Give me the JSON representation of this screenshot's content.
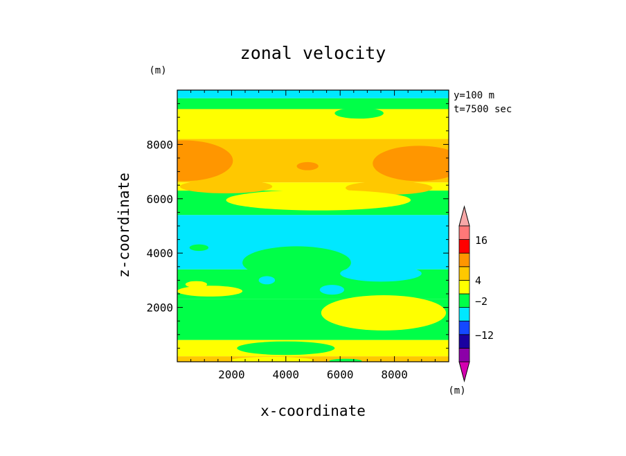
{
  "chart_data": {
    "type": "heatmap",
    "title": "zonal velocity",
    "xlabel": "x-coordinate",
    "ylabel": "z-coordinate",
    "x_unit": "(m)",
    "y_unit": "(m)",
    "colorbar_unit": "(m)",
    "annotations": [
      "y=100 m",
      "t=7500 sec"
    ],
    "xlim": [
      0,
      10000
    ],
    "ylim": [
      0,
      10000
    ],
    "x_ticks": [
      2000,
      4000,
      6000,
      8000
    ],
    "y_ticks": [
      2000,
      4000,
      6000,
      8000
    ],
    "colorbar": {
      "levels": [
        {
          "color": "#d400b0"
        },
        {
          "color": "#8c00a8"
        },
        {
          "color": "#1a00a0"
        },
        {
          "color": "#1448ff"
        },
        {
          "color": "#00e8ff"
        },
        {
          "color": "#00ff48"
        },
        {
          "color": "#ffff00"
        },
        {
          "color": "#ffc800"
        },
        {
          "color": "#ff9600"
        },
        {
          "color": "#ff0000"
        },
        {
          "color": "#ff7878"
        },
        {
          "color": "#f8a8a8"
        }
      ],
      "tick_labels": [
        "16",
        "4",
        "−2",
        "−12"
      ]
    },
    "bands": [
      {
        "z": [
          9700,
          10000
        ],
        "color": "#00e8ff"
      },
      {
        "z": [
          9300,
          9700
        ],
        "color": "#00ff48"
      },
      {
        "z": [
          8200,
          9300
        ],
        "color": "#ffff00"
      },
      {
        "z": [
          6600,
          8200
        ],
        "color": "#ffc800"
      },
      {
        "z": [
          6300,
          6600
        ],
        "color": "#ffff00"
      },
      {
        "z": [
          5400,
          6300
        ],
        "color": "#00ff48"
      },
      {
        "z": [
          3400,
          5400
        ],
        "color": "#00e8ff"
      },
      {
        "z": [
          2300,
          3400
        ],
        "color": "#00ff48"
      },
      {
        "z": [
          800,
          2300
        ],
        "color": "#00ff48"
      },
      {
        "z": [
          200,
          800
        ],
        "color": "#ffff00"
      },
      {
        "z": [
          0,
          200
        ],
        "color": "#ffc800"
      }
    ],
    "patches": [
      {
        "x": 250,
        "z": 7400,
        "rx": 1800,
        "rz": 750,
        "color": "#ff9600"
      },
      {
        "x": 8900,
        "z": 7300,
        "rx": 1700,
        "rz": 650,
        "color": "#ff9600"
      },
      {
        "x": 4800,
        "z": 7200,
        "rx": 400,
        "rz": 150,
        "color": "#ff9600"
      },
      {
        "x": 1800,
        "z": 6450,
        "rx": 1700,
        "rz": 250,
        "color": "#ffc800"
      },
      {
        "x": 7800,
        "z": 6400,
        "rx": 1600,
        "rz": 250,
        "color": "#ffc800"
      },
      {
        "x": 5200,
        "z": 5950,
        "rx": 3400,
        "rz": 380,
        "color": "#ffff00"
      },
      {
        "x": 6700,
        "z": 9150,
        "rx": 900,
        "rz": 200,
        "color": "#00ff48"
      },
      {
        "x": 4400,
        "z": 3650,
        "rx": 2000,
        "rz": 600,
        "color": "#00ff48"
      },
      {
        "x": 7500,
        "z": 3250,
        "rx": 1500,
        "rz": 300,
        "color": "#00e8ff"
      },
      {
        "x": 800,
        "z": 4200,
        "rx": 350,
        "rz": 120,
        "color": "#00ff48"
      },
      {
        "x": 1200,
        "z": 2600,
        "rx": 1200,
        "rz": 200,
        "color": "#ffff00"
      },
      {
        "x": 700,
        "z": 2850,
        "rx": 400,
        "rz": 120,
        "color": "#ffff00"
      },
      {
        "x": 5700,
        "z": 2650,
        "rx": 450,
        "rz": 180,
        "color": "#00e8ff"
      },
      {
        "x": 3300,
        "z": 3000,
        "rx": 300,
        "rz": 150,
        "color": "#00e8ff"
      },
      {
        "x": 7600,
        "z": 1800,
        "rx": 2300,
        "rz": 650,
        "color": "#ffff00"
      },
      {
        "x": 4000,
        "z": 500,
        "rx": 1800,
        "rz": 250,
        "color": "#00ff48"
      },
      {
        "x": 6200,
        "z": 30,
        "rx": 600,
        "rz": 80,
        "color": "#00ff48"
      },
      {
        "x": 3500,
        "z": 60,
        "rx": 1500,
        "rz": 120,
        "color": "#ffff00"
      }
    ]
  }
}
